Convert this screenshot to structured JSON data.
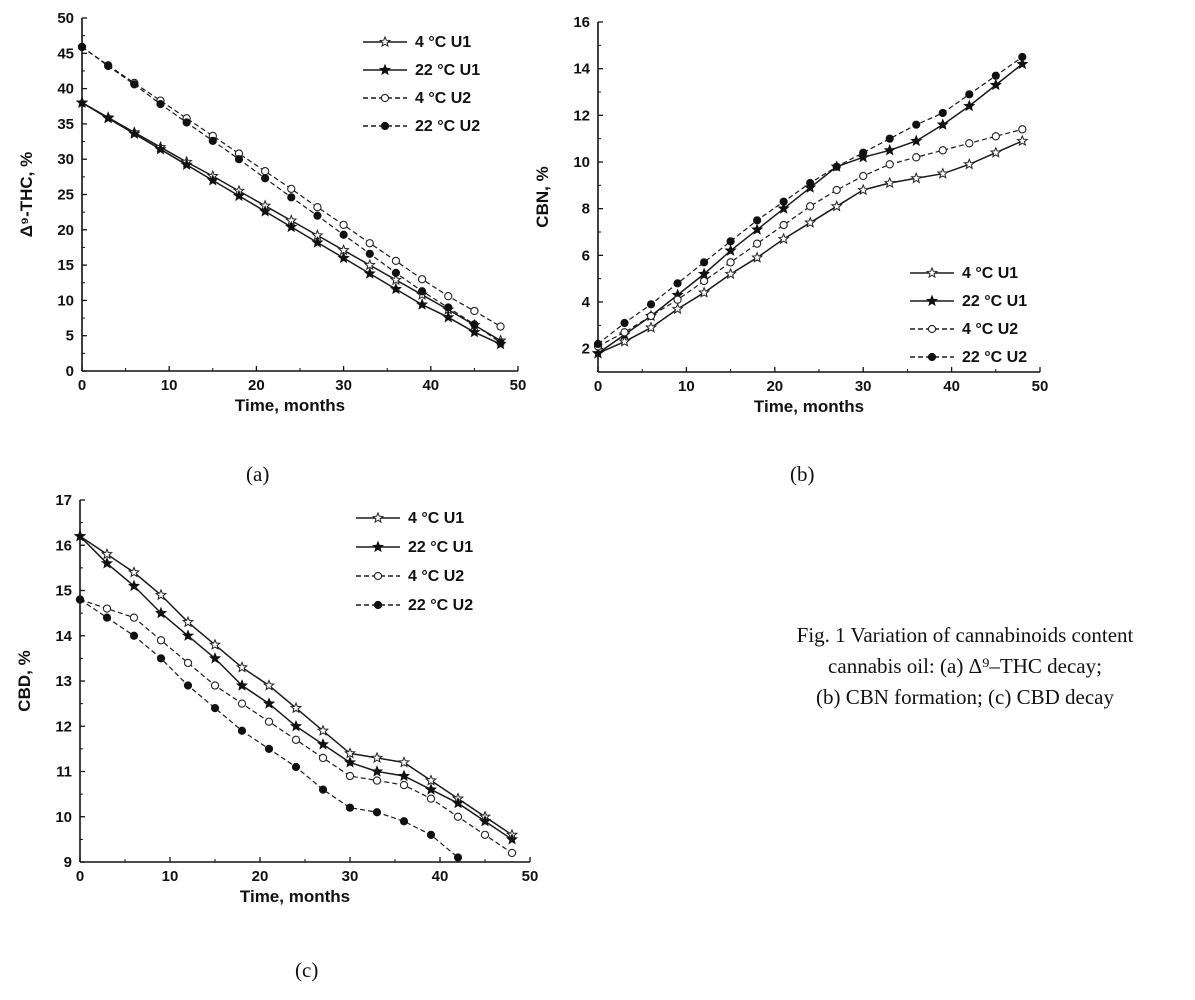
{
  "chart_data": [
    {
      "id": "a",
      "type": "line",
      "panel_label": "(a)",
      "xlabel": "Time, months",
      "ylabel": "Δ⁹-THC, %",
      "xlim": [
        0,
        50
      ],
      "ylim": [
        0,
        50
      ],
      "xticks": [
        0,
        10,
        20,
        30,
        40,
        50
      ],
      "yticks": [
        0,
        5,
        10,
        15,
        20,
        25,
        30,
        35,
        40,
        45,
        50
      ],
      "legend_position": "top-right",
      "x": [
        0,
        3,
        6,
        9,
        12,
        15,
        18,
        21,
        24,
        27,
        30,
        33,
        36,
        39,
        42,
        45,
        48
      ],
      "series": [
        {
          "name": "4 °C U1",
          "marker": "open-star",
          "dash": "solid",
          "values": [
            38.0,
            35.9,
            33.8,
            31.7,
            29.6,
            27.6,
            25.5,
            23.4,
            21.3,
            19.2,
            17.1,
            15.0,
            12.9,
            10.8,
            8.7,
            6.5,
            4.3
          ]
        },
        {
          "name": "22 °C U1",
          "marker": "filled-star",
          "dash": "solid",
          "values": [
            38.0,
            35.8,
            33.6,
            31.4,
            29.2,
            27.0,
            24.8,
            22.6,
            20.4,
            18.2,
            16.0,
            13.8,
            11.6,
            9.4,
            7.6,
            5.5,
            3.8
          ]
        },
        {
          "name": "4 °C U2",
          "marker": "open-circle",
          "dash": "dashed",
          "values": [
            45.9,
            43.3,
            40.8,
            38.3,
            35.8,
            33.3,
            30.8,
            28.3,
            25.8,
            23.2,
            20.7,
            18.1,
            15.6,
            13.0,
            10.6,
            8.5,
            6.3
          ]
        },
        {
          "name": "22 °C U2",
          "marker": "filled-circle",
          "dash": "dashed",
          "values": [
            45.9,
            43.2,
            40.6,
            37.8,
            35.2,
            32.6,
            30.0,
            27.3,
            24.6,
            22.0,
            19.3,
            16.6,
            13.9,
            11.3,
            9.0,
            6.6,
            4.0
          ]
        }
      ]
    },
    {
      "id": "b",
      "type": "line",
      "panel_label": "(b)",
      "xlabel": "Time, months",
      "ylabel": "CBN, %",
      "xlim": [
        0,
        50
      ],
      "ylim": [
        1,
        16
      ],
      "xticks": [
        0,
        10,
        20,
        30,
        40,
        50
      ],
      "yticks": [
        2,
        4,
        6,
        8,
        10,
        12,
        14,
        16
      ],
      "legend_position": "bottom-right",
      "x": [
        0,
        3,
        6,
        9,
        12,
        15,
        18,
        21,
        24,
        27,
        30,
        33,
        36,
        39,
        42,
        45,
        48
      ],
      "series": [
        {
          "name": "4 °C U1",
          "marker": "open-star",
          "dash": "solid",
          "values": [
            1.8,
            2.3,
            2.9,
            3.7,
            4.4,
            5.2,
            5.9,
            6.7,
            7.4,
            8.1,
            8.8,
            9.1,
            9.3,
            9.5,
            9.9,
            10.4,
            10.9
          ]
        },
        {
          "name": "22 °C U1",
          "marker": "filled-star",
          "dash": "solid",
          "values": [
            1.8,
            2.6,
            3.4,
            4.3,
            5.2,
            6.2,
            7.1,
            8.0,
            8.9,
            9.8,
            10.2,
            10.5,
            10.9,
            11.6,
            12.4,
            13.3,
            14.2
          ]
        },
        {
          "name": "4 °C U2",
          "marker": "open-circle",
          "dash": "dashed",
          "values": [
            2.1,
            2.7,
            3.4,
            4.1,
            4.9,
            5.7,
            6.5,
            7.3,
            8.1,
            8.8,
            9.4,
            9.9,
            10.2,
            10.5,
            10.8,
            11.1,
            11.4
          ]
        },
        {
          "name": "22 °C U2",
          "marker": "filled-circle",
          "dash": "dashed",
          "values": [
            2.2,
            3.1,
            3.9,
            4.8,
            5.7,
            6.6,
            7.5,
            8.3,
            9.1,
            9.8,
            10.4,
            11.0,
            11.6,
            12.1,
            12.9,
            13.7,
            14.5
          ]
        }
      ]
    },
    {
      "id": "c",
      "type": "line",
      "panel_label": "(c)",
      "xlabel": "Time, months",
      "ylabel": "CBD, %",
      "xlim": [
        0,
        50
      ],
      "ylim": [
        9,
        17
      ],
      "xticks": [
        0,
        10,
        20,
        30,
        40,
        50
      ],
      "yticks": [
        9,
        10,
        11,
        12,
        13,
        14,
        15,
        16,
        17
      ],
      "legend_position": "top-right",
      "x": [
        0,
        3,
        6,
        9,
        12,
        15,
        18,
        21,
        24,
        27,
        30,
        33,
        36,
        39,
        42,
        45,
        48
      ],
      "series": [
        {
          "name": "4 °C U1",
          "marker": "open-star",
          "dash": "solid",
          "values": [
            16.2,
            15.8,
            15.4,
            14.9,
            14.3,
            13.8,
            13.3,
            12.9,
            12.4,
            11.9,
            11.4,
            11.3,
            11.2,
            10.8,
            10.4,
            10.0,
            9.6
          ]
        },
        {
          "name": "22 °C U1",
          "marker": "filled-star",
          "dash": "solid",
          "values": [
            16.2,
            15.6,
            15.1,
            14.5,
            14.0,
            13.5,
            12.9,
            12.5,
            12.0,
            11.6,
            11.2,
            11.0,
            10.9,
            10.6,
            10.3,
            9.9,
            9.5
          ]
        },
        {
          "name": "4 °C U2",
          "marker": "open-circle",
          "dash": "dashed",
          "values": [
            14.8,
            14.6,
            14.4,
            13.9,
            13.4,
            12.9,
            12.5,
            12.1,
            11.7,
            11.3,
            10.9,
            10.8,
            10.7,
            10.4,
            10.0,
            9.6,
            9.2
          ]
        },
        {
          "name": "22 °C U2",
          "marker": "filled-circle",
          "dash": "dashed",
          "values": [
            14.8,
            14.4,
            14.0,
            13.5,
            12.9,
            12.4,
            11.9,
            11.5,
            11.1,
            10.6,
            10.2,
            10.1,
            9.9,
            9.6,
            9.1,
            null,
            null
          ]
        }
      ]
    }
  ],
  "caption": {
    "line1": "Fig. 1 Variation of cannabinoids content",
    "line2": "cannabis oil: (a) Δ⁹–THC decay;",
    "line3": "(b) CBN formation; (c) CBD decay"
  }
}
